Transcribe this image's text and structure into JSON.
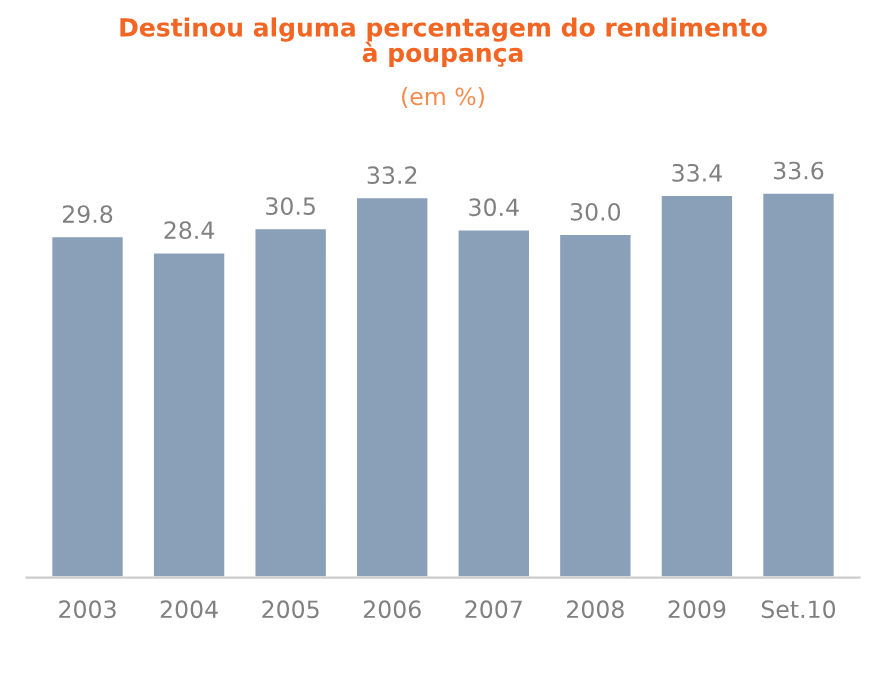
{
  "chart_data": {
    "type": "bar",
    "title": "Destinou alguma percentagem do rendimento\nà poupança",
    "subtitle": "(em %)",
    "categories": [
      "2003",
      "2004",
      "2005",
      "2006",
      "2007",
      "2008",
      "2009",
      "Set.10"
    ],
    "values": [
      29.8,
      28.4,
      30.5,
      33.2,
      30.4,
      30.0,
      33.4,
      33.6
    ],
    "value_labels": [
      "29.8",
      "28.4",
      "30.5",
      "33.2",
      "30.4",
      "30.0",
      "33.4",
      "33.6"
    ],
    "color": "#8a9fb8",
    "grid": false,
    "legend": false
  }
}
